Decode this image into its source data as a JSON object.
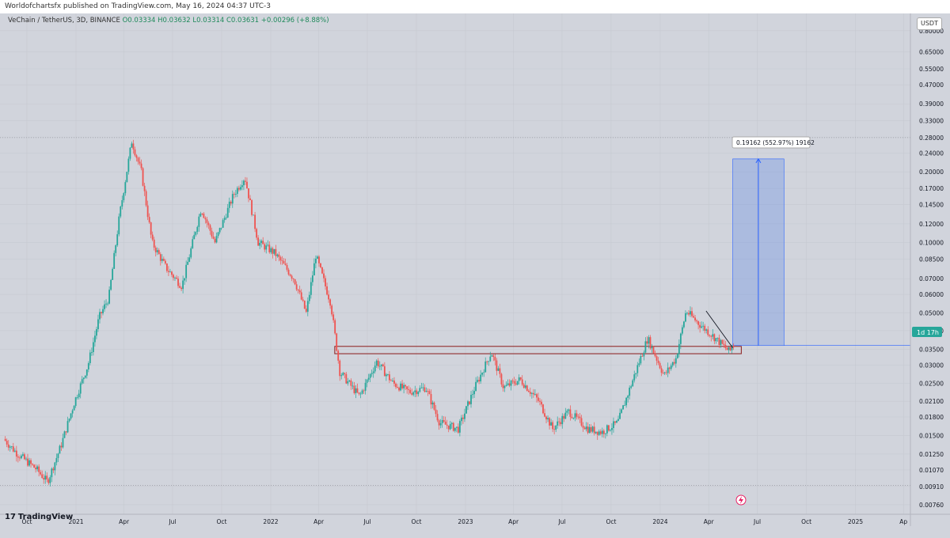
{
  "publisher": "Worldofchartsfx published on TradingView.com, May 16, 2024 04:37 UTC-3",
  "legend": {
    "symbol": "VeChain / TetherUS, 3D, BINANCE",
    "open": "O0.03334",
    "high": "H0.03632",
    "low": "L0.03314",
    "close": "C0.03631",
    "change": "+0.00296 (+8.88%)"
  },
  "currency": "USDT",
  "price_label": "1d 17h",
  "measure_label": "0.19162 (552.97%) 19162",
  "footer": "TradingView",
  "colors": {
    "up": "#26a69a",
    "down": "#ef5350",
    "measure": "#2962ff",
    "zone": "#8b1a1a",
    "bg": "#d1d4dc"
  },
  "chart_data": {
    "type": "candlestick",
    "title": "VeChain / TetherUS, 3D, BINANCE",
    "y_scale": "log",
    "y_ticks": [
      "0.80000",
      "0.65000",
      "0.55000",
      "0.47000",
      "0.39000",
      "0.33000",
      "0.28000",
      "0.24000",
      "0.20000",
      "0.17000",
      "0.14500",
      "0.12000",
      "0.10000",
      "0.08500",
      "0.07000",
      "0.06000",
      "0.05000",
      "0.04200",
      "0.03500",
      "0.03000",
      "0.02500",
      "0.02100",
      "0.01800",
      "0.01500",
      "0.01250",
      "0.01070",
      "0.00910",
      "0.00760",
      "0.00660"
    ],
    "y_tick_values": [
      0.8,
      0.65,
      0.55,
      0.47,
      0.39,
      0.33,
      0.28,
      0.24,
      0.2,
      0.17,
      0.145,
      0.12,
      0.1,
      0.085,
      0.07,
      0.06,
      0.05,
      0.042,
      0.035,
      0.03,
      0.025,
      0.021,
      0.018,
      0.015,
      0.0125,
      0.0107,
      0.0091,
      0.0076,
      0.0066
    ],
    "x_ticks": [
      "Oct",
      "2021",
      "Apr",
      "Jul",
      "Oct",
      "2022",
      "Apr",
      "Jul",
      "Oct",
      "2023",
      "Apr",
      "Jul",
      "Oct",
      "2024",
      "Apr",
      "Jul",
      "Oct",
      "2025",
      "Ap"
    ],
    "x_tick_dates": [
      "2020-10-01",
      "2021-01-01",
      "2021-04-01",
      "2021-07-01",
      "2021-10-01",
      "2022-01-01",
      "2022-04-01",
      "2022-07-01",
      "2022-10-01",
      "2023-01-01",
      "2023-04-01",
      "2023-07-01",
      "2023-10-01",
      "2024-01-01",
      "2024-04-01",
      "2024-07-01",
      "2024-10-01",
      "2025-01-01",
      "2025-04-01"
    ],
    "price_path": [
      [
        "2020-08-20",
        0.0145
      ],
      [
        "2020-09-15",
        0.0125
      ],
      [
        "2020-10-20",
        0.0108
      ],
      [
        "2020-11-10",
        0.0095
      ],
      [
        "2020-12-05",
        0.0135
      ],
      [
        "2020-12-31",
        0.021
      ],
      [
        "2021-01-25",
        0.03
      ],
      [
        "2021-02-15",
        0.048
      ],
      [
        "2021-03-05",
        0.058
      ],
      [
        "2021-03-25",
        0.13
      ],
      [
        "2021-04-17",
        0.27
      ],
      [
        "2021-05-05",
        0.2
      ],
      [
        "2021-05-25",
        0.1
      ],
      [
        "2021-06-20",
        0.078
      ],
      [
        "2021-07-20",
        0.065
      ],
      [
        "2021-08-25",
        0.14
      ],
      [
        "2021-09-20",
        0.1
      ],
      [
        "2021-10-25",
        0.16
      ],
      [
        "2021-11-15",
        0.19
      ],
      [
        "2021-12-10",
        0.1
      ],
      [
        "2022-01-10",
        0.09
      ],
      [
        "2022-02-15",
        0.07
      ],
      [
        "2022-03-10",
        0.05
      ],
      [
        "2022-03-28",
        0.088
      ],
      [
        "2022-04-25",
        0.055
      ],
      [
        "2022-05-12",
        0.028
      ],
      [
        "2022-06-18",
        0.022
      ],
      [
        "2022-07-20",
        0.031
      ],
      [
        "2022-08-20",
        0.025
      ],
      [
        "2022-09-20",
        0.023
      ],
      [
        "2022-10-20",
        0.024
      ],
      [
        "2022-11-15",
        0.017
      ],
      [
        "2022-12-20",
        0.016
      ],
      [
        "2023-01-20",
        0.024
      ],
      [
        "2023-02-20",
        0.034
      ],
      [
        "2023-03-15",
        0.024
      ],
      [
        "2023-04-15",
        0.026
      ],
      [
        "2023-05-20",
        0.021
      ],
      [
        "2023-06-15",
        0.016
      ],
      [
        "2023-07-15",
        0.019
      ],
      [
        "2023-08-20",
        0.016
      ],
      [
        "2023-09-15",
        0.0155
      ],
      [
        "2023-10-15",
        0.017
      ],
      [
        "2023-11-15",
        0.027
      ],
      [
        "2023-12-10",
        0.039
      ],
      [
        "2024-01-10",
        0.027
      ],
      [
        "2024-02-01",
        0.032
      ],
      [
        "2024-02-20",
        0.051
      ],
      [
        "2024-03-15",
        0.045
      ],
      [
        "2024-04-15",
        0.039
      ],
      [
        "2024-05-12",
        0.034
      ],
      [
        "2024-05-16",
        0.0363
      ]
    ],
    "zone": {
      "from": "2022-05-01",
      "to": "2024-06-01",
      "low": 0.0335,
      "high": 0.036
    },
    "downtrend": [
      [
        "2024-03-27",
        0.051
      ],
      [
        "2024-05-16",
        0.0355
      ]
    ],
    "projection": {
      "from": "2024-05-16",
      "to": "2024-08-20",
      "base": 0.0363,
      "target": 0.227
    },
    "h_lines": [
      0.28,
      0.0092
    ]
  }
}
